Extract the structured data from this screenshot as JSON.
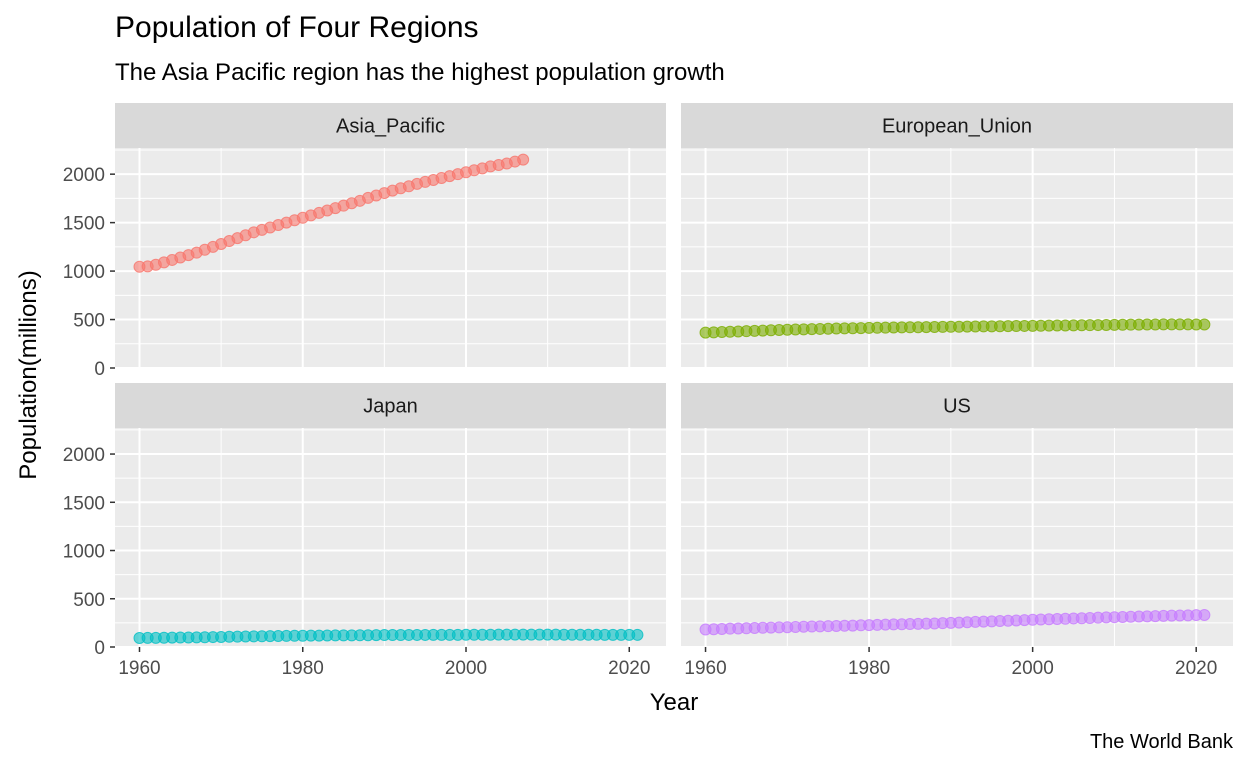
{
  "chart_data": {
    "type": "scatter",
    "title": "Population of Four Regions",
    "subtitle": "The Asia Pacific region has the highest population growth",
    "caption": "The World Bank",
    "xlabel": "Year",
    "ylabel": "Population(millions)",
    "xlim": [
      1957,
      2024.5
    ],
    "ylim": [
      0,
      2270
    ],
    "x_ticks": [
      1960,
      1980,
      2000,
      2020
    ],
    "y_ticks": [
      0,
      500,
      1000,
      1500,
      2000
    ],
    "grid": true,
    "legend": "none",
    "facet_layout": "2x2",
    "series": [
      {
        "name": "Asia_Pacific",
        "color": "#F8766D",
        "x_start": 1960,
        "x_step": 1,
        "values": [
          1045,
          1048,
          1065,
          1090,
          1115,
          1140,
          1165,
          1190,
          1220,
          1250,
          1280,
          1310,
          1340,
          1370,
          1400,
          1425,
          1450,
          1475,
          1500,
          1525,
          1550,
          1575,
          1600,
          1625,
          1650,
          1675,
          1700,
          1725,
          1755,
          1780,
          1805,
          1830,
          1855,
          1875,
          1900,
          1920,
          1940,
          1960,
          1980,
          2000,
          2020,
          2040,
          2060,
          2080,
          2095,
          2110,
          2130,
          2150
        ]
      },
      {
        "name": "European_Union",
        "color": "#7CAE00",
        "x_start": 1960,
        "x_step": 1,
        "values": [
          365,
          368,
          371,
          374,
          377,
          380,
          383,
          386,
          389,
          392,
          395,
          397,
          399,
          401,
          403,
          405,
          407,
          409,
          410,
          412,
          414,
          415,
          416,
          418,
          419,
          420,
          421,
          422,
          423,
          424,
          425,
          426,
          427,
          428,
          429,
          430,
          431,
          432,
          433,
          434,
          435,
          436,
          437,
          438,
          439,
          440,
          441,
          442,
          443,
          444,
          445,
          446,
          447,
          448,
          449,
          449,
          450,
          450,
          450,
          450,
          449,
          449
        ]
      },
      {
        "name": "Japan",
        "color": "#00BFC4",
        "x_start": 1960,
        "x_step": 1,
        "values": [
          93,
          94,
          95,
          96,
          97,
          98,
          99,
          100,
          101,
          103,
          104,
          106,
          107,
          109,
          110,
          111,
          113,
          114,
          115,
          116,
          117,
          118,
          118,
          119,
          120,
          121,
          121,
          122,
          122,
          123,
          124,
          124,
          124,
          125,
          125,
          125,
          126,
          126,
          126,
          126,
          127,
          127,
          127,
          127,
          128,
          128,
          128,
          128,
          128,
          128,
          128,
          128,
          127,
          127,
          127,
          127,
          127,
          126,
          126,
          126,
          126,
          126
        ]
      },
      {
        "name": "US",
        "color": "#C77CFF",
        "x_start": 1960,
        "x_step": 1,
        "values": [
          181,
          184,
          187,
          190,
          192,
          194,
          197,
          199,
          201,
          203,
          205,
          207,
          210,
          212,
          214,
          216,
          218,
          220,
          222,
          225,
          227,
          229,
          232,
          234,
          236,
          238,
          240,
          242,
          244,
          247,
          250,
          253,
          257,
          260,
          263,
          266,
          269,
          272,
          275,
          279,
          282,
          285,
          288,
          290,
          293,
          296,
          298,
          301,
          304,
          307,
          309,
          311,
          314,
          316,
          318,
          320,
          323,
          325,
          327,
          328,
          331,
          332
        ]
      }
    ]
  }
}
